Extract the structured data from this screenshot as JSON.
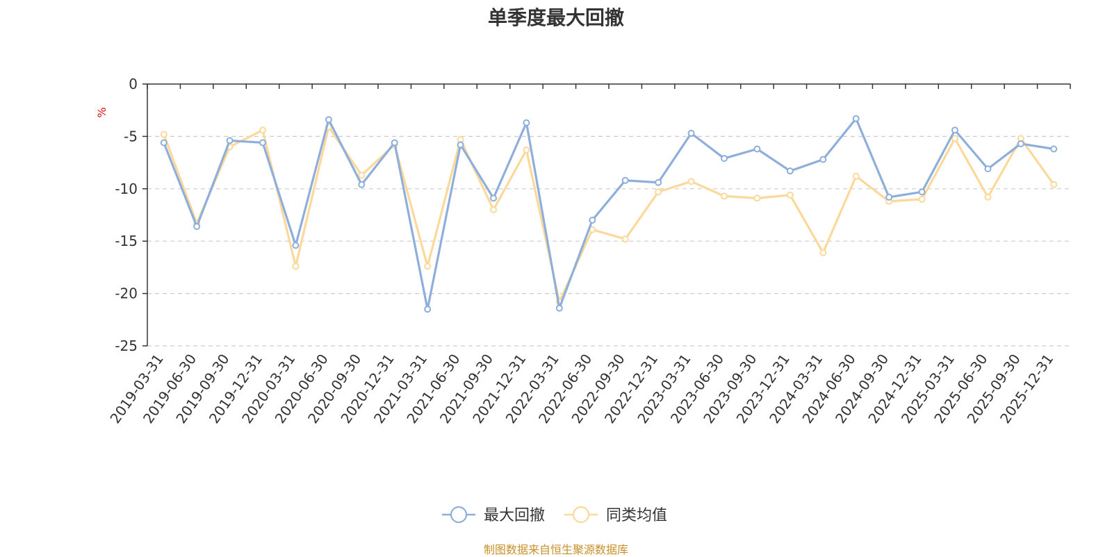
{
  "chart_data": {
    "type": "line",
    "title": "单季度最大回撤",
    "ylabel": "%",
    "ylim": [
      -25,
      0
    ],
    "yticks": [
      0,
      -5,
      -10,
      -15,
      -20,
      -25
    ],
    "grid": true,
    "legend_position": "bottom",
    "categories": [
      "2019-03-31",
      "2019-06-30",
      "2019-09-30",
      "2019-12-31",
      "2020-03-31",
      "2020-06-30",
      "2020-09-30",
      "2020-12-31",
      "2021-03-31",
      "2021-06-30",
      "2021-09-30",
      "2021-12-31",
      "2022-03-31",
      "2022-06-30",
      "2022-09-30",
      "2022-12-31",
      "2023-03-31",
      "2023-06-30",
      "2023-09-30",
      "2023-12-31",
      "2024-03-31",
      "2024-06-30",
      "2024-09-30",
      "2024-12-31",
      "2025-03-31",
      "2025-06-30",
      "2025-09-30",
      "2025-12-31"
    ],
    "series": [
      {
        "name": "最大回撤",
        "color": "#8eaedb",
        "values": [
          -5.6,
          -13.6,
          -5.4,
          -5.6,
          -15.4,
          -3.4,
          -9.6,
          -5.6,
          -21.5,
          -5.8,
          -10.9,
          -3.7,
          -21.4,
          -13.0,
          -9.2,
          -9.4,
          -4.7,
          -7.1,
          -6.2,
          -8.3,
          -7.2,
          -3.3,
          -10.8,
          -10.3,
          -4.4,
          -8.1,
          -5.7,
          -6.2
        ]
      },
      {
        "name": "同类均值",
        "color": "#fcd99a",
        "values": [
          -4.8,
          -13.3,
          -6.0,
          -4.4,
          -17.4,
          -4.1,
          -8.7,
          -5.8,
          -17.4,
          -5.3,
          -12.0,
          -6.3,
          -20.8,
          -13.9,
          -14.8,
          -10.3,
          -9.3,
          -10.7,
          -10.9,
          -10.6,
          -16.1,
          -8.8,
          -11.2,
          -11.0,
          -5.2,
          -10.8,
          -5.2,
          -9.6
        ]
      }
    ]
  },
  "footer": "制图数据来自恒生聚源数据库"
}
